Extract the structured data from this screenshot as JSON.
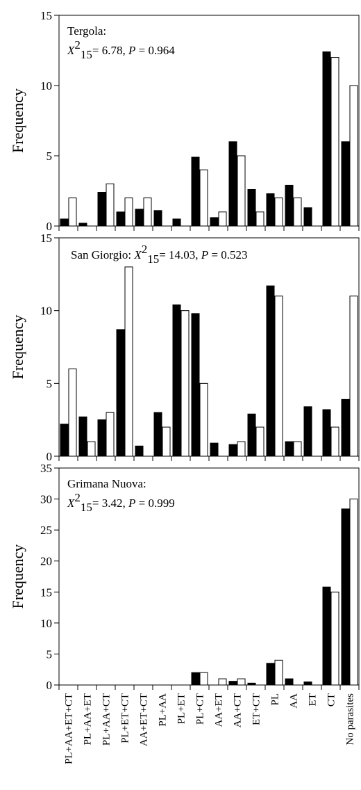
{
  "chart_data": [
    {
      "type": "bar",
      "annotation": {
        "site": "Tergola:",
        "stat": "X",
        "sup": "2",
        "sub": "15",
        "value": "= 6.78,",
        "p": "P",
        "pvalue": "= 0.964"
      },
      "ylabel": "Frequency",
      "ylim": [
        0,
        15
      ],
      "yticks": [
        "0",
        "5",
        "10",
        "15"
      ],
      "categories": [
        "PL+AA+ET+CT",
        "PL+AA+ET",
        "PL+AA+CT",
        "PL+ET+CT",
        "AA+ET+CT",
        "PL+AA",
        "PL+ET",
        "PL+CT",
        "AA+ET",
        "AA+CT",
        "ET+CT",
        "PL",
        "AA",
        "ET",
        "CT",
        "No parasites"
      ],
      "series": [
        {
          "values": [
            0.5,
            0.2,
            2.4,
            1.0,
            1.2,
            1.1,
            0.5,
            4.9,
            0.6,
            6.0,
            2.6,
            2.3,
            2.9,
            1.3,
            12.4,
            6.0
          ],
          "color": "#000000"
        },
        {
          "values": [
            2.0,
            0.0,
            3.0,
            2.0,
            2.0,
            0.0,
            0.0,
            4.0,
            1.0,
            5.0,
            1.0,
            2.0,
            2.0,
            0.0,
            12.0,
            10.0
          ],
          "color": "#ffffff"
        }
      ]
    },
    {
      "type": "bar",
      "annotation": {
        "site": "San Giorgio:",
        "stat": "X",
        "sup": "2",
        "sub": "15",
        "value": "= 14.03,",
        "p": "P",
        "pvalue": "= 0.523"
      },
      "ylabel": "Frequency",
      "ylim": [
        0,
        15
      ],
      "yticks": [
        "0",
        "5",
        "10",
        "15"
      ],
      "categories": [
        "PL+AA+ET+CT",
        "PL+AA+ET",
        "PL+AA+CT",
        "PL+ET+CT",
        "AA+ET+CT",
        "PL+AA",
        "PL+ET",
        "PL+CT",
        "AA+ET",
        "AA+CT",
        "ET+CT",
        "PL",
        "AA",
        "ET",
        "CT",
        "No parasites"
      ],
      "series": [
        {
          "values": [
            2.2,
            2.7,
            2.5,
            8.7,
            0.7,
            3.0,
            10.4,
            9.8,
            0.9,
            0.8,
            2.9,
            11.7,
            1.0,
            3.4,
            3.2,
            3.9
          ],
          "color": "#000000"
        },
        {
          "values": [
            6.0,
            1.0,
            3.0,
            13.0,
            0.0,
            2.0,
            10.0,
            5.0,
            0.0,
            1.0,
            2.0,
            11.0,
            1.0,
            0.0,
            2.0,
            11.0
          ],
          "color": "#ffffff"
        }
      ]
    },
    {
      "type": "bar",
      "annotation": {
        "site": "Grimana Nuova:",
        "stat": "X",
        "sup": "2",
        "sub": "15",
        "value": "= 3.42,",
        "p": "P",
        "pvalue": "= 0.999"
      },
      "ylabel": "Frequency",
      "ylim": [
        0,
        35
      ],
      "yticks": [
        "0",
        "5",
        "10",
        "15",
        "20",
        "25",
        "30",
        "35"
      ],
      "categories": [
        "PL+AA+ET+CT",
        "PL+AA+ET",
        "PL+AA+CT",
        "PL+ET+CT",
        "AA+ET+CT",
        "PL+AA",
        "PL+ET",
        "PL+CT",
        "AA+ET",
        "AA+CT",
        "ET+CT",
        "PL",
        "AA",
        "ET",
        "CT",
        "No parasites"
      ],
      "series": [
        {
          "values": [
            0.0,
            0.0,
            0.0,
            0.0,
            0.0,
            0.0,
            0.0,
            2.0,
            0.0,
            0.6,
            0.3,
            3.5,
            1.0,
            0.5,
            15.8,
            28.4
          ],
          "color": "#000000"
        },
        {
          "values": [
            0.0,
            0.0,
            0.0,
            0.0,
            0.0,
            0.0,
            0.0,
            2.0,
            1.0,
            1.0,
            0.0,
            4.0,
            0.0,
            0.0,
            15.0,
            30.0
          ],
          "color": "#ffffff"
        }
      ]
    }
  ]
}
